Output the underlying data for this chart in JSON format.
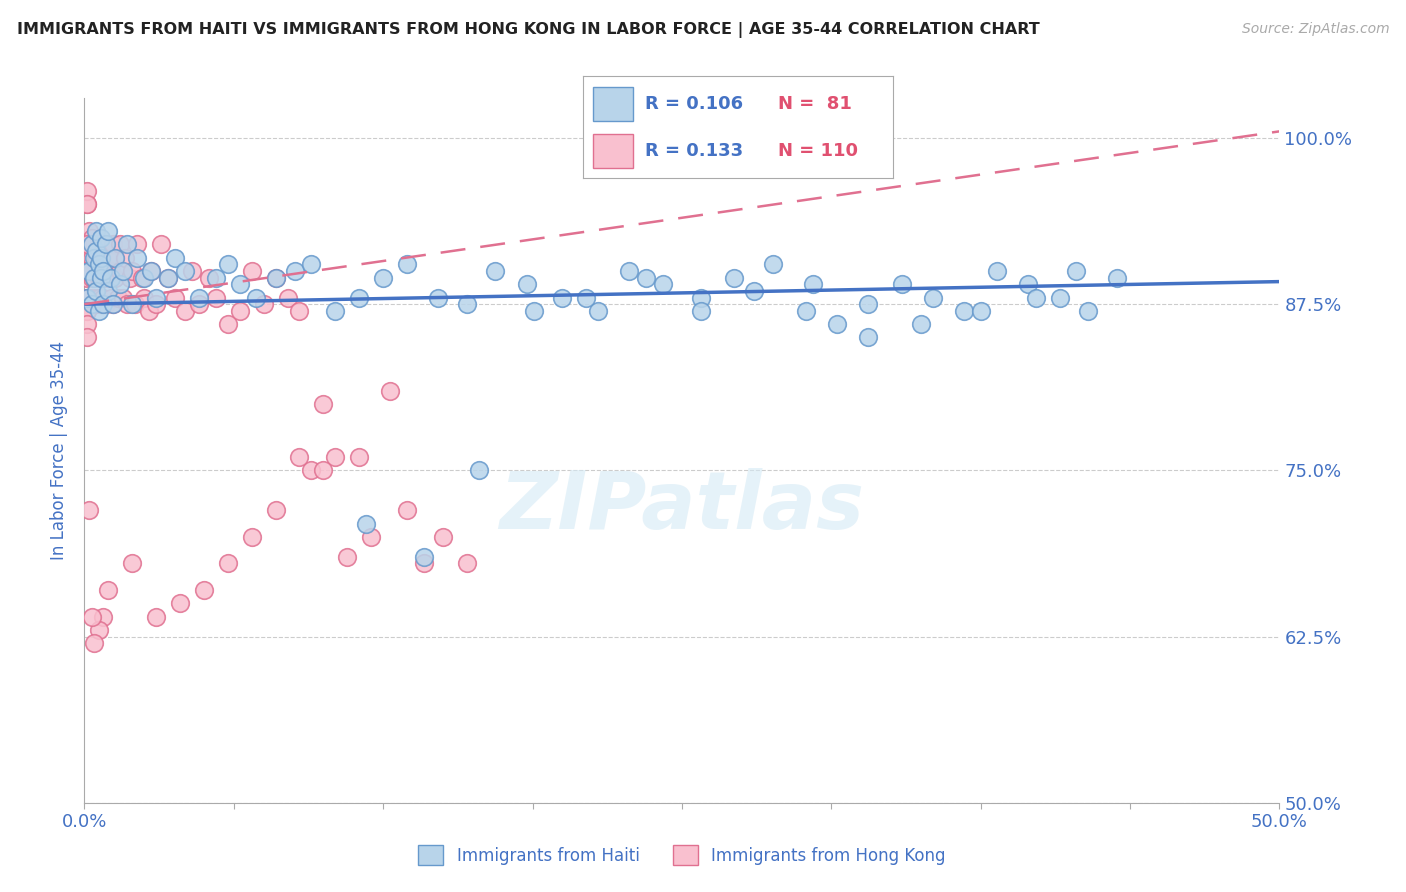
{
  "title": "IMMIGRANTS FROM HAITI VS IMMIGRANTS FROM HONG KONG IN LABOR FORCE | AGE 35-44 CORRELATION CHART",
  "source": "Source: ZipAtlas.com",
  "ylabel": "In Labor Force | Age 35-44",
  "xlim": [
    0.0,
    0.5
  ],
  "ylim": [
    0.5,
    1.03
  ],
  "yticks": [
    0.5,
    0.625,
    0.75,
    0.875,
    1.0
  ],
  "ytick_labels": [
    "50.0%",
    "62.5%",
    "75.0%",
    "87.5%",
    "100.0%"
  ],
  "xticks": [
    0.0,
    0.0625,
    0.125,
    0.1875,
    0.25,
    0.3125,
    0.375,
    0.4375,
    0.5
  ],
  "xtick_labels": [
    "0.0%",
    "",
    "",
    "",
    "",
    "",
    "",
    "",
    "50.0%"
  ],
  "haiti_color": "#b8d4ea",
  "haiti_edge_color": "#6699cc",
  "hongkong_color": "#f9c0cf",
  "hongkong_edge_color": "#e07090",
  "haiti_R": 0.106,
  "haiti_N": 81,
  "hongkong_R": 0.133,
  "hongkong_N": 110,
  "haiti_trend_color": "#4472c4",
  "hongkong_trend_color": "#e07090",
  "watermark": "ZIPatlas",
  "background_color": "#ffffff",
  "grid_color": "#cccccc",
  "title_color": "#222222",
  "axis_label_color": "#4472c4",
  "legend_R_color": "#4472c4",
  "legend_N_color": "#e05070",
  "legend_border_color": "#aaaaaa",
  "haiti_x_data": [
    0.001,
    0.002,
    0.003,
    0.003,
    0.004,
    0.004,
    0.005,
    0.005,
    0.005,
    0.006,
    0.006,
    0.007,
    0.007,
    0.007,
    0.008,
    0.008,
    0.009,
    0.01,
    0.01,
    0.011,
    0.012,
    0.013,
    0.015,
    0.016,
    0.018,
    0.02,
    0.022,
    0.025,
    0.028,
    0.03,
    0.035,
    0.038,
    0.042,
    0.048,
    0.055,
    0.06,
    0.065,
    0.072,
    0.08,
    0.088,
    0.095,
    0.105,
    0.115,
    0.125,
    0.135,
    0.148,
    0.16,
    0.172,
    0.185,
    0.2,
    0.215,
    0.228,
    0.242,
    0.258,
    0.272,
    0.288,
    0.302,
    0.315,
    0.328,
    0.342,
    0.355,
    0.368,
    0.382,
    0.395,
    0.408,
    0.42,
    0.432,
    0.415,
    0.398,
    0.375,
    0.35,
    0.328,
    0.305,
    0.28,
    0.258,
    0.235,
    0.21,
    0.188,
    0.165,
    0.142,
    0.118
  ],
  "haiti_y_data": [
    0.88,
    0.9,
    0.92,
    0.875,
    0.895,
    0.91,
    0.915,
    0.93,
    0.885,
    0.87,
    0.905,
    0.925,
    0.895,
    0.91,
    0.9,
    0.875,
    0.92,
    0.93,
    0.885,
    0.895,
    0.875,
    0.91,
    0.89,
    0.9,
    0.92,
    0.875,
    0.91,
    0.895,
    0.9,
    0.88,
    0.895,
    0.91,
    0.9,
    0.88,
    0.895,
    0.905,
    0.89,
    0.88,
    0.895,
    0.9,
    0.905,
    0.87,
    0.88,
    0.895,
    0.905,
    0.88,
    0.875,
    0.9,
    0.89,
    0.88,
    0.87,
    0.9,
    0.89,
    0.88,
    0.895,
    0.905,
    0.87,
    0.86,
    0.85,
    0.89,
    0.88,
    0.87,
    0.9,
    0.89,
    0.88,
    0.87,
    0.895,
    0.9,
    0.88,
    0.87,
    0.86,
    0.875,
    0.89,
    0.885,
    0.87,
    0.895,
    0.88,
    0.87,
    0.75,
    0.685,
    0.71
  ],
  "hk_x_data": [
    0.001,
    0.001,
    0.001,
    0.001,
    0.002,
    0.002,
    0.002,
    0.002,
    0.002,
    0.003,
    0.003,
    0.003,
    0.003,
    0.003,
    0.004,
    0.004,
    0.004,
    0.004,
    0.005,
    0.005,
    0.005,
    0.005,
    0.006,
    0.006,
    0.006,
    0.007,
    0.007,
    0.007,
    0.008,
    0.008,
    0.008,
    0.009,
    0.009,
    0.009,
    0.01,
    0.01,
    0.011,
    0.011,
    0.012,
    0.012,
    0.013,
    0.013,
    0.014,
    0.015,
    0.015,
    0.016,
    0.017,
    0.018,
    0.019,
    0.02,
    0.021,
    0.022,
    0.024,
    0.025,
    0.027,
    0.028,
    0.03,
    0.032,
    0.035,
    0.038,
    0.042,
    0.045,
    0.048,
    0.052,
    0.055,
    0.06,
    0.065,
    0.07,
    0.075,
    0.08,
    0.085,
    0.09,
    0.095,
    0.1,
    0.105,
    0.11,
    0.115,
    0.12,
    0.128,
    0.135,
    0.142,
    0.15,
    0.16,
    0.1,
    0.09,
    0.08,
    0.07,
    0.06,
    0.05,
    0.04,
    0.03,
    0.02,
    0.01,
    0.008,
    0.006,
    0.004,
    0.003,
    0.002,
    0.001,
    0.001,
    0.001,
    0.001,
    0.001,
    0.001,
    0.001,
    0.001,
    0.001,
    0.001,
    0.001,
    0.001
  ],
  "hk_y_data": [
    0.9,
    0.92,
    0.875,
    0.895,
    0.91,
    0.93,
    0.88,
    0.9,
    0.92,
    0.875,
    0.895,
    0.91,
    0.925,
    0.88,
    0.9,
    0.875,
    0.92,
    0.895,
    0.91,
    0.88,
    0.9,
    0.875,
    0.92,
    0.895,
    0.88,
    0.91,
    0.9,
    0.875,
    0.92,
    0.895,
    0.88,
    0.9,
    0.92,
    0.875,
    0.895,
    0.91,
    0.9,
    0.88,
    0.92,
    0.875,
    0.91,
    0.895,
    0.88,
    0.9,
    0.92,
    0.88,
    0.91,
    0.875,
    0.895,
    0.9,
    0.875,
    0.92,
    0.895,
    0.88,
    0.87,
    0.9,
    0.875,
    0.92,
    0.895,
    0.88,
    0.87,
    0.9,
    0.875,
    0.895,
    0.88,
    0.86,
    0.87,
    0.9,
    0.875,
    0.895,
    0.88,
    0.87,
    0.75,
    0.8,
    0.76,
    0.685,
    0.76,
    0.7,
    0.81,
    0.72,
    0.68,
    0.7,
    0.68,
    0.75,
    0.76,
    0.72,
    0.7,
    0.68,
    0.66,
    0.65,
    0.64,
    0.68,
    0.66,
    0.64,
    0.63,
    0.62,
    0.64,
    0.72,
    0.95,
    0.96,
    0.9,
    0.88,
    0.87,
    0.95,
    0.92,
    0.9,
    0.88,
    0.87,
    0.86,
    0.85
  ]
}
